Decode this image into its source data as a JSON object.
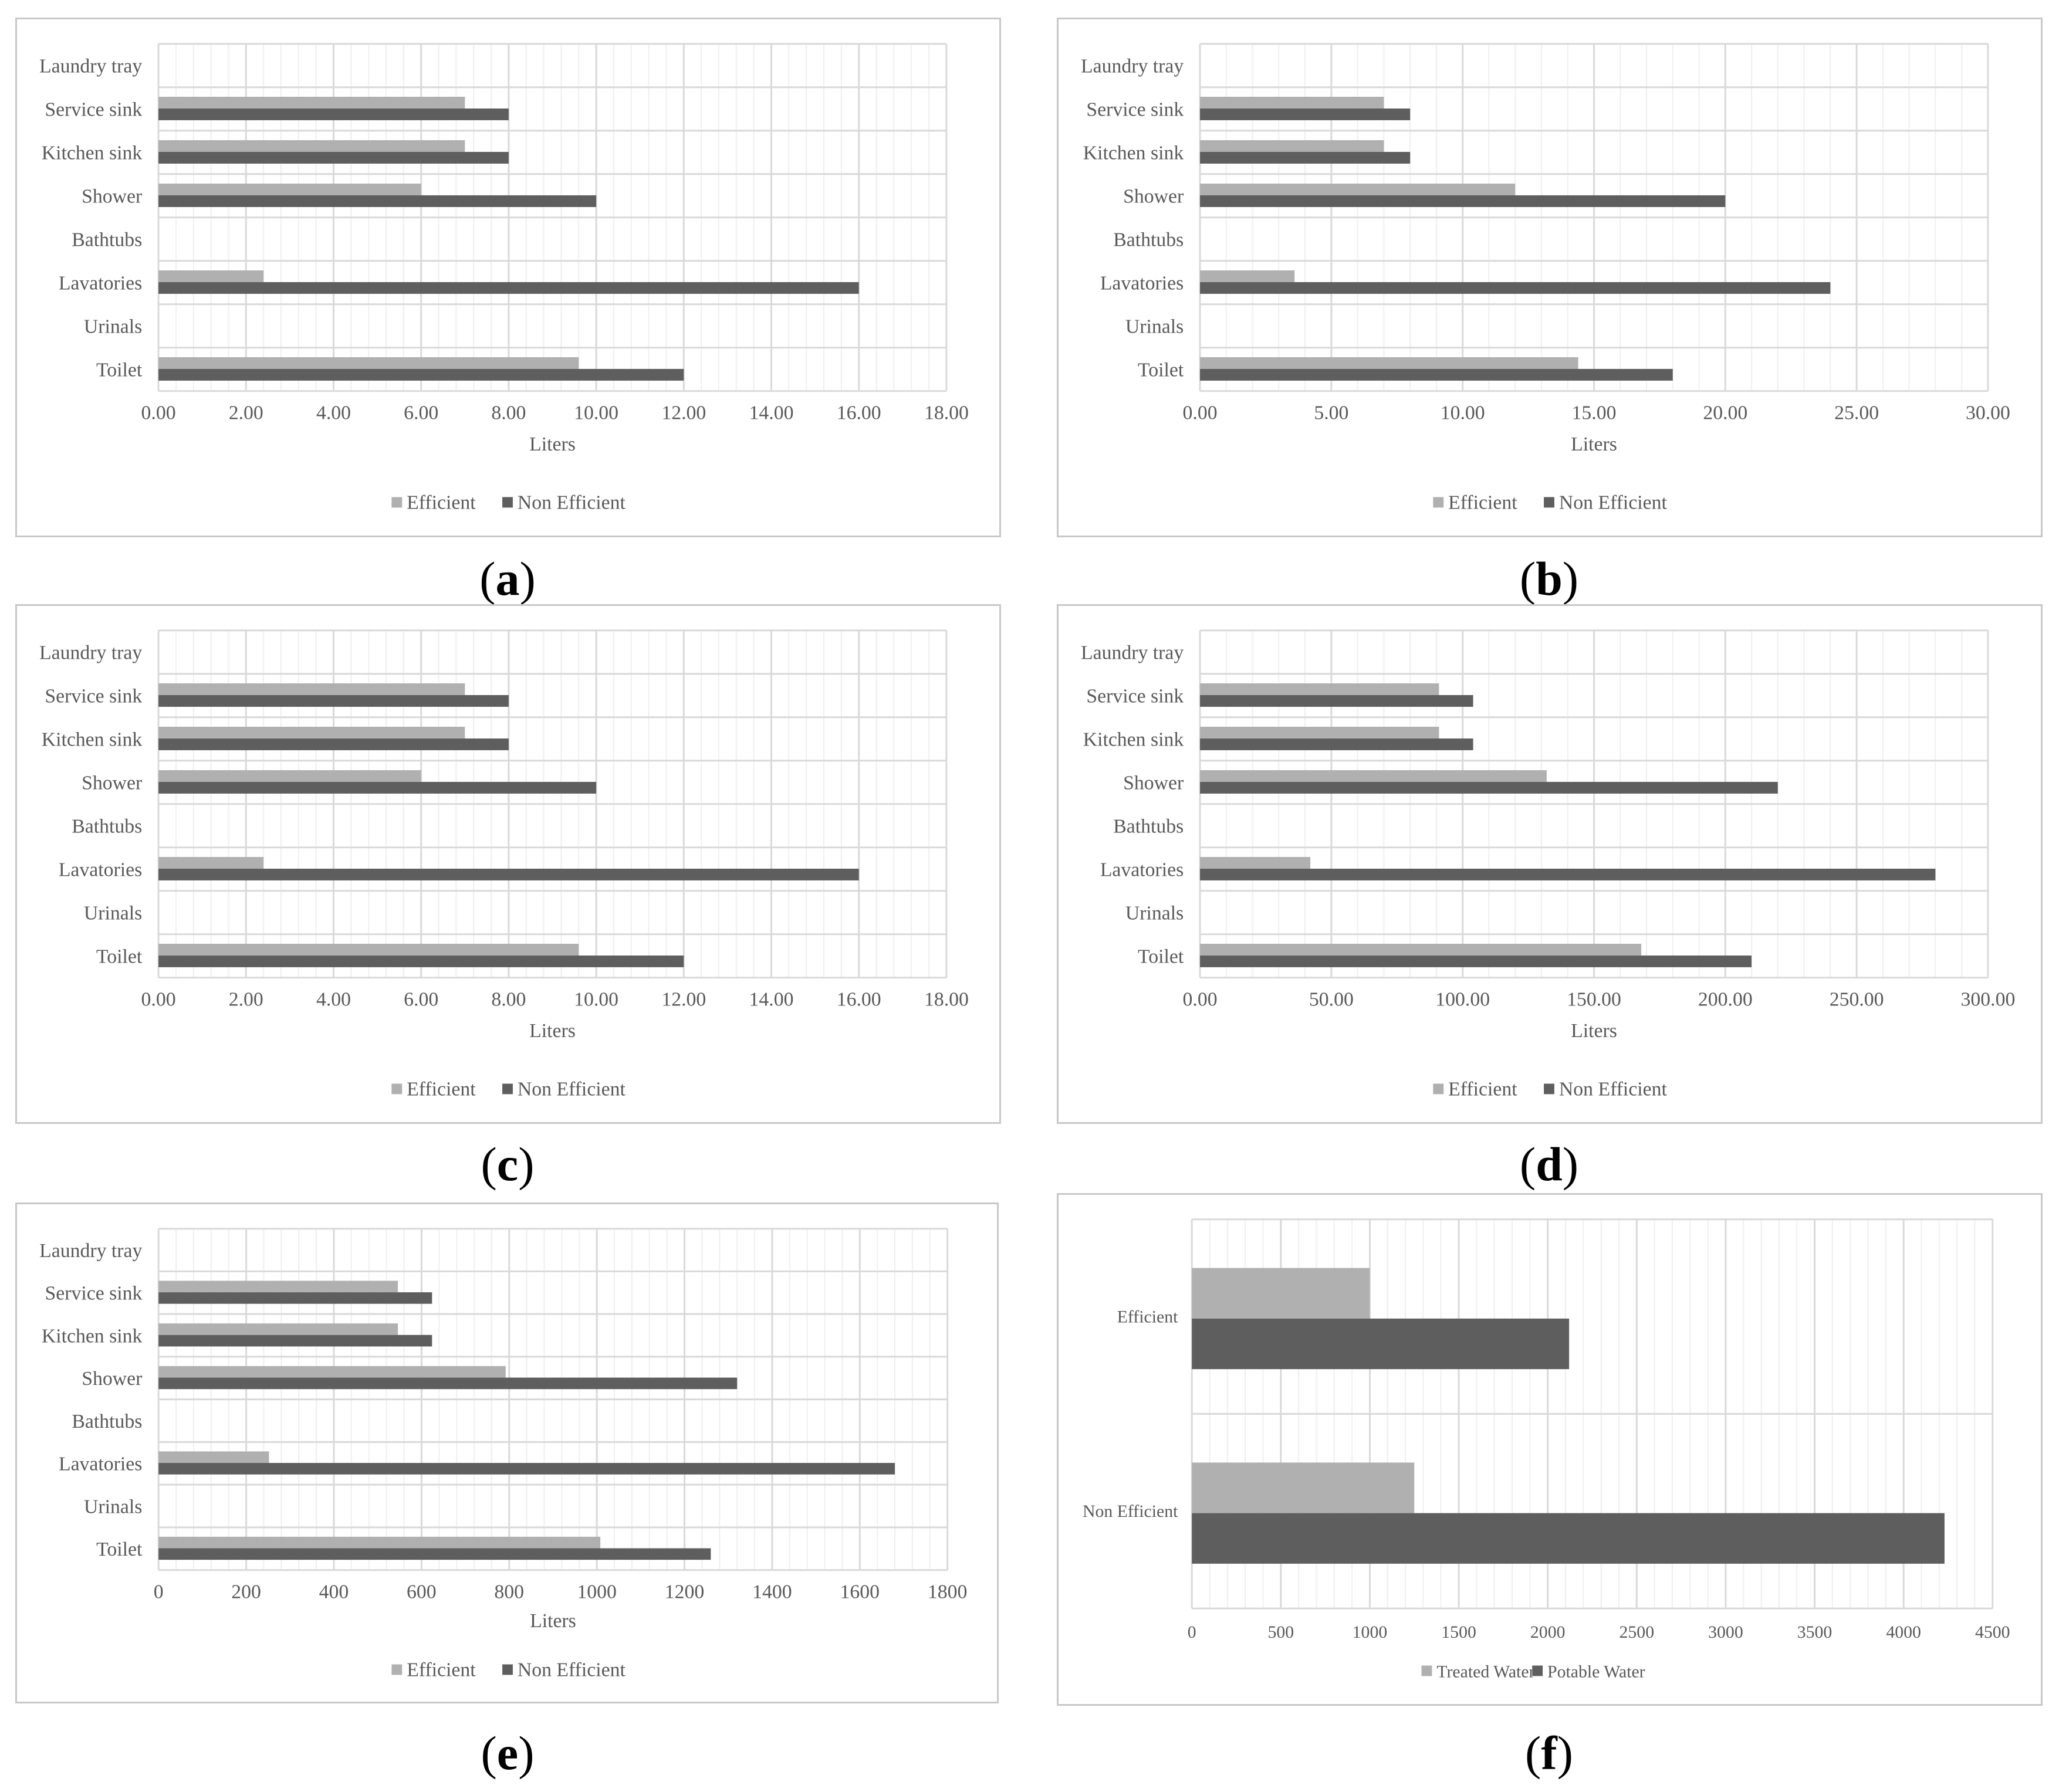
{
  "colors": {
    "efficient": "#b0b0b0",
    "non_efficient": "#5e5e5e",
    "major_grid": "#d9d9d9",
    "minor_grid": "#efefef",
    "text": "#595959"
  },
  "chart_data": [
    {
      "id": "a",
      "caption": "a",
      "type": "bar",
      "orientation": "horizontal",
      "categories": [
        "Laundry tray",
        "Service sink",
        "Kitchen sink",
        "Shower",
        "Bathtubs",
        "Lavatories",
        "Urinals",
        "Toilet"
      ],
      "series": [
        {
          "name": "Efficient",
          "values": [
            0,
            7,
            7,
            6,
            0,
            2.4,
            0,
            9.6
          ]
        },
        {
          "name": "Non Efficient",
          "values": [
            0,
            8,
            8,
            10,
            0,
            16,
            0,
            12
          ]
        }
      ],
      "xlabel": "Liters",
      "xlim": [
        0,
        18
      ],
      "ticks": [
        "0.00",
        "2.00",
        "4.00",
        "6.00",
        "8.00",
        "10.00",
        "12.00",
        "14.00",
        "16.00",
        "18.00"
      ],
      "minor_step": 0.4
    },
    {
      "id": "b",
      "caption": "b",
      "type": "bar",
      "orientation": "horizontal",
      "categories": [
        "Laundry tray",
        "Service sink",
        "Kitchen sink",
        "Shower",
        "Bathtubs",
        "Lavatories",
        "Urinals",
        "Toilet"
      ],
      "series": [
        {
          "name": "Efficient",
          "values": [
            0,
            7,
            7,
            12,
            0,
            3.6,
            0,
            14.4
          ]
        },
        {
          "name": "Non Efficient",
          "values": [
            0,
            8,
            8,
            20,
            0,
            24,
            0,
            18
          ]
        }
      ],
      "xlabel": "Liters",
      "xlim": [
        0,
        30
      ],
      "ticks": [
        "0.00",
        "5.00",
        "10.00",
        "15.00",
        "20.00",
        "25.00",
        "30.00"
      ],
      "minor_step": 1
    },
    {
      "id": "c",
      "caption": "c",
      "type": "bar",
      "orientation": "horizontal",
      "categories": [
        "Laundry tray",
        "Service sink",
        "Kitchen sink",
        "Shower",
        "Bathtubs",
        "Lavatories",
        "Urinals",
        "Toilet"
      ],
      "series": [
        {
          "name": "Efficient",
          "values": [
            0,
            7,
            7,
            6,
            0,
            2.4,
            0,
            9.6
          ]
        },
        {
          "name": "Non Efficient",
          "values": [
            0,
            8,
            8,
            10,
            0,
            16,
            0,
            12
          ]
        }
      ],
      "xlabel": "Liters",
      "xlim": [
        0,
        18
      ],
      "ticks": [
        "0.00",
        "2.00",
        "4.00",
        "6.00",
        "8.00",
        "10.00",
        "12.00",
        "14.00",
        "16.00",
        "18.00"
      ],
      "minor_step": 0.4
    },
    {
      "id": "d",
      "caption": "d",
      "type": "bar",
      "orientation": "horizontal",
      "categories": [
        "Laundry tray",
        "Service sink",
        "Kitchen sink",
        "Shower",
        "Bathtubs",
        "Lavatories",
        "Urinals",
        "Toilet"
      ],
      "series": [
        {
          "name": "Efficient",
          "values": [
            0,
            91,
            91,
            132,
            0,
            42,
            0,
            168
          ]
        },
        {
          "name": "Non Efficient",
          "values": [
            0,
            104,
            104,
            220,
            0,
            280,
            0,
            210
          ]
        }
      ],
      "xlabel": "Liters",
      "xlim": [
        0,
        300
      ],
      "ticks": [
        "0.00",
        "50.00",
        "100.00",
        "150.00",
        "200.00",
        "250.00",
        "300.00"
      ],
      "minor_step": 10
    },
    {
      "id": "e",
      "caption": "e",
      "type": "bar",
      "orientation": "horizontal",
      "categories": [
        "Laundry tray",
        "Service sink",
        "Kitchen sink",
        "Shower",
        "Bathtubs",
        "Lavatories",
        "Urinals",
        "Toilet"
      ],
      "series": [
        {
          "name": "Efficient",
          "values": [
            0,
            546,
            546,
            792,
            0,
            252,
            0,
            1008
          ]
        },
        {
          "name": "Non Efficient",
          "values": [
            0,
            624,
            624,
            1320,
            0,
            1680,
            0,
            1260
          ]
        }
      ],
      "xlabel": "Liters",
      "xlim": [
        0,
        1800
      ],
      "ticks": [
        "0",
        "200",
        "400",
        "600",
        "800",
        "1000",
        "1200",
        "1400",
        "1600",
        "1800"
      ],
      "minor_step": 40
    },
    {
      "id": "f",
      "caption": "f",
      "type": "bar",
      "orientation": "horizontal",
      "categories": [
        "Efficient",
        "Non Efficient"
      ],
      "series": [
        {
          "name": "Treated Water",
          "values": [
            1000,
            1250
          ]
        },
        {
          "name": "Potable Water",
          "values": [
            2120,
            4230
          ]
        }
      ],
      "xlabel": "",
      "xlim": [
        0,
        4500
      ],
      "ticks": [
        "0",
        "500",
        "1000",
        "1500",
        "2000",
        "2500",
        "3000",
        "3500",
        "4000",
        "4500"
      ],
      "minor_step": 100
    }
  ]
}
